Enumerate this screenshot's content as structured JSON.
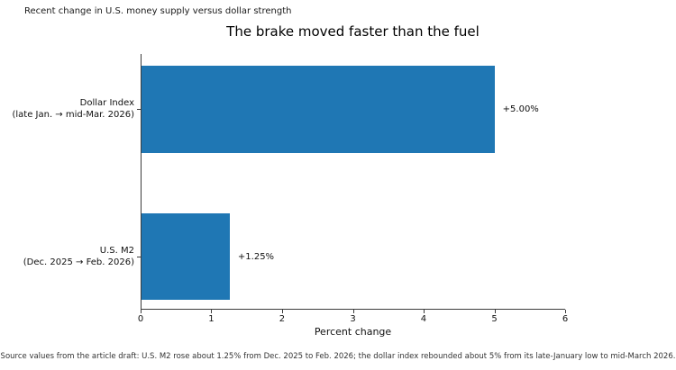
{
  "kicker": "Recent change in U.S. money supply versus dollar strength",
  "source_note": "Source values from the article draft: U.S. M2 rose about 1.25% from Dec. 2025 to Feb. 2026; the dollar index rebounded about 5% from its late-January low to mid-March 2026.",
  "chart_data": {
    "type": "bar",
    "orientation": "horizontal",
    "title": "The brake moved faster than the fuel",
    "categories": [
      "Dollar Index (late Jan. → mid-Mar. 2026)",
      "U.S. M2 (Dec. 2025 → Feb. 2026)"
    ],
    "category_lines": [
      [
        "Dollar Index",
        "(late Jan. → mid-Mar. 2026)"
      ],
      [
        "U.S. M2",
        "(Dec. 2025 → Feb. 2026)"
      ]
    ],
    "values": [
      5.0,
      1.25
    ],
    "value_labels": [
      "+5.00%",
      "+1.25%"
    ],
    "xlabel": "Percent change",
    "xlim": [
      0,
      6
    ],
    "xticks": [
      "0",
      "1",
      "2",
      "3",
      "4",
      "5",
      "6"
    ],
    "bar_color": "#1f77b4",
    "grid": false,
    "legend": false
  }
}
